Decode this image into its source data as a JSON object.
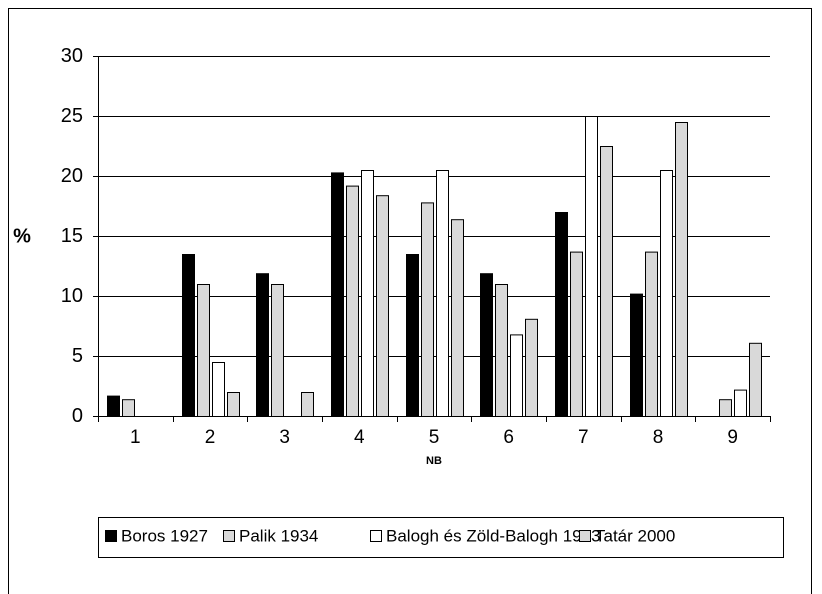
{
  "chart_data": {
    "type": "bar",
    "y_label": "%",
    "x_label": "NB",
    "categories": [
      "1",
      "2",
      "3",
      "4",
      "5",
      "6",
      "7",
      "8",
      "9"
    ],
    "series": [
      {
        "name": "Boros 1927",
        "color": "#000000",
        "values": [
          1.7,
          13.5,
          11.9,
          20.3,
          13.5,
          11.9,
          17,
          10.2,
          null
        ]
      },
      {
        "name": "Palik 1934",
        "color": "#d9d9d9",
        "values": [
          1.4,
          11,
          11,
          19.2,
          17.8,
          11,
          13.7,
          13.7,
          1.4
        ]
      },
      {
        "name": "Balogh és Zöld-Balogh 1993",
        "color": "#ffffff",
        "values": [
          null,
          4.5,
          null,
          20.5,
          20.5,
          6.8,
          25,
          20.5,
          2.2
        ]
      },
      {
        "name": "Tatár 2000",
        "color": "#d9d9d9",
        "values": [
          null,
          2,
          2,
          18.4,
          16.4,
          8.1,
          22.5,
          24.5,
          6.1
        ]
      }
    ],
    "ylim": [
      0,
      30
    ],
    "yticks": [
      0,
      5,
      10,
      15,
      20,
      25,
      30
    ],
    "grid": true,
    "legend": "bottom"
  }
}
